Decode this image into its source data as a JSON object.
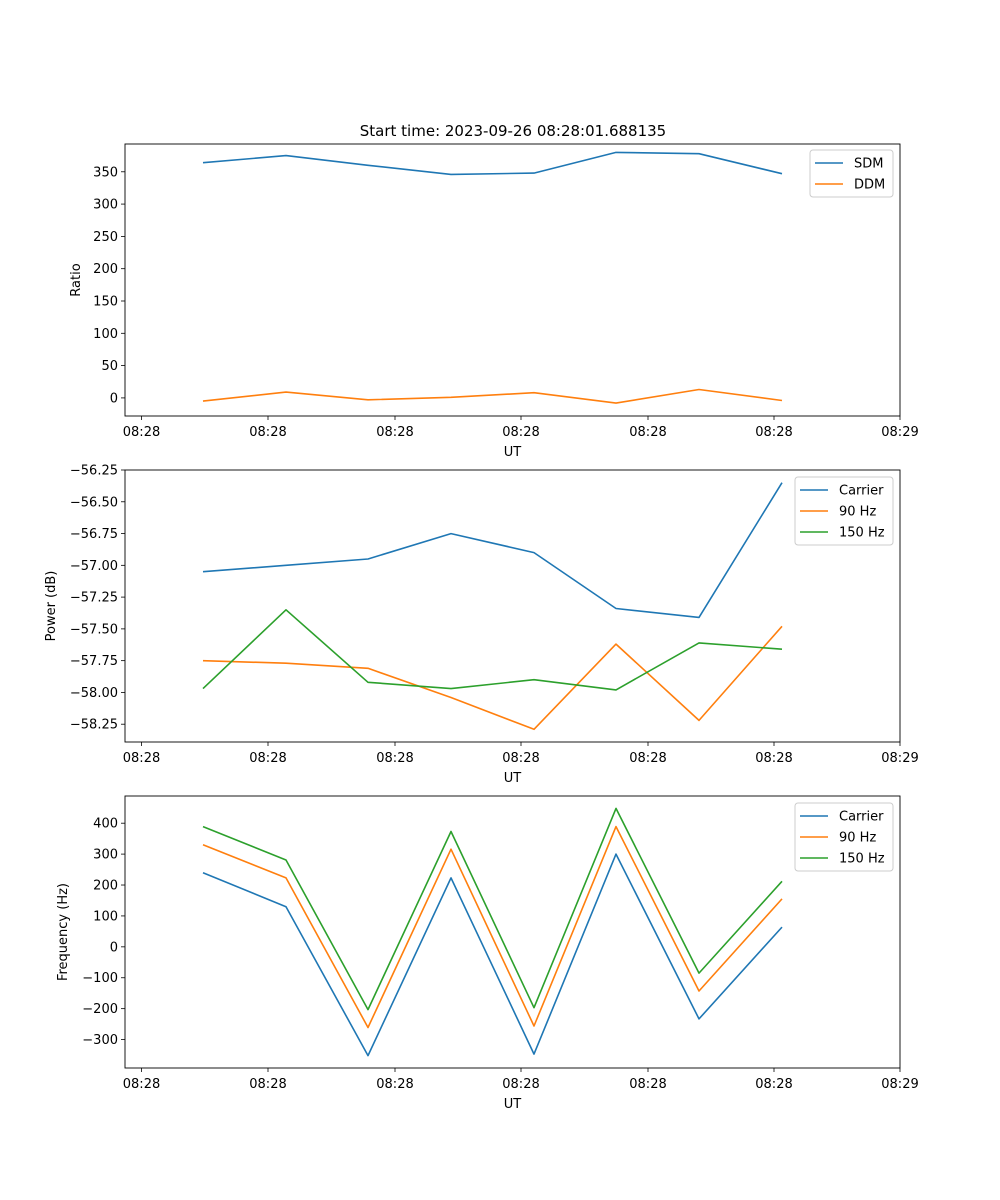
{
  "figure_title": "Start time: 2023-09-26 08:28:01.688135",
  "colors": {
    "blue": "#1f77b4",
    "orange": "#ff7f0e",
    "green": "#2ca02c"
  },
  "chart_data": [
    {
      "type": "line",
      "title": "Start time: 2023-09-26 08:28:01.688135",
      "xlabel": "UT",
      "ylabel": "Ratio",
      "x_tick_labels": [
        "08:28",
        "08:28",
        "08:28",
        "08:28",
        "08:28",
        "08:28",
        "08:29"
      ],
      "y_ticks": [
        0,
        50,
        100,
        150,
        200,
        250,
        300,
        350
      ],
      "y_tick_labels": [
        "0",
        "50",
        "100",
        "150",
        "200",
        "250",
        "300",
        "350"
      ],
      "ylim": [
        -28,
        393
      ],
      "legend_position": "upper right",
      "series": [
        {
          "name": "SDM",
          "color": "#1f77b4",
          "values": [
            364,
            375,
            360,
            346,
            348,
            380,
            378,
            347
          ]
        },
        {
          "name": "DDM",
          "color": "#ff7f0e",
          "values": [
            -5,
            9,
            -3,
            1,
            8,
            -8,
            13,
            -4
          ]
        }
      ]
    },
    {
      "type": "line",
      "title": "",
      "xlabel": "UT",
      "ylabel": "Power (dB)",
      "x_tick_labels": [
        "08:28",
        "08:28",
        "08:28",
        "08:28",
        "08:28",
        "08:28",
        "08:29"
      ],
      "y_ticks": [
        -58.25,
        -58.0,
        -57.75,
        -57.5,
        -57.25,
        -57.0,
        -56.75,
        -56.5,
        -56.25
      ],
      "y_tick_labels": [
        "−58.25",
        "−58.00",
        "−57.75",
        "−57.50",
        "−57.25",
        "−57.00",
        "−56.75",
        "−56.50",
        "−56.25"
      ],
      "ylim": [
        -58.39,
        -56.25
      ],
      "legend_position": "upper right",
      "series": [
        {
          "name": "Carrier",
          "color": "#1f77b4",
          "values": [
            -57.05,
            -57.0,
            -56.95,
            -56.75,
            -56.9,
            -57.34,
            -57.41,
            -56.35
          ]
        },
        {
          "name": "90 Hz",
          "color": "#ff7f0e",
          "values": [
            -57.75,
            -57.77,
            -57.81,
            -58.04,
            -58.29,
            -57.62,
            -58.22,
            -57.48
          ]
        },
        {
          "name": "150 Hz",
          "color": "#2ca02c",
          "values": [
            -57.97,
            -57.35,
            -57.92,
            -57.97,
            -57.9,
            -57.98,
            -57.61,
            -57.66
          ]
        }
      ]
    },
    {
      "type": "line",
      "title": "",
      "xlabel": "UT",
      "ylabel": "Frequency (Hz)",
      "x_tick_labels": [
        "08:28",
        "08:28",
        "08:28",
        "08:28",
        "08:28",
        "08:28",
        "08:29"
      ],
      "y_ticks": [
        -300,
        -200,
        -100,
        0,
        100,
        200,
        300,
        400
      ],
      "y_tick_labels": [
        "−300",
        "−200",
        "−100",
        "0",
        "100",
        "200",
        "300",
        "400"
      ],
      "ylim": [
        -392,
        488
      ],
      "legend_position": "upper right",
      "series": [
        {
          "name": "Carrier",
          "color": "#1f77b4",
          "values": [
            240,
            130,
            -352,
            223,
            -347,
            300,
            -233,
            64
          ]
        },
        {
          "name": "90 Hz",
          "color": "#ff7f0e",
          "values": [
            330,
            223,
            -261,
            316,
            -256,
            389,
            -143,
            155
          ]
        },
        {
          "name": "150 Hz",
          "color": "#2ca02c",
          "values": [
            389,
            281,
            -203,
            373,
            -197,
            448,
            -85,
            212
          ]
        }
      ]
    }
  ]
}
